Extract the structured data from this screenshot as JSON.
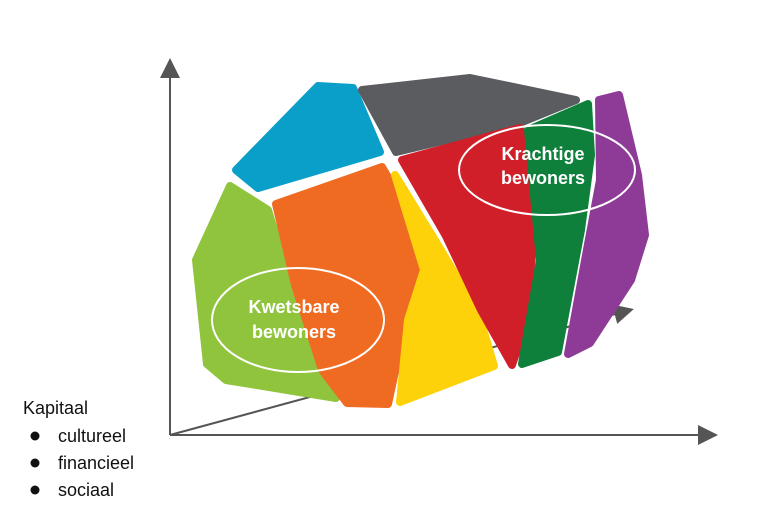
{
  "labels": [
    {
      "lines": [
        "Krachtige",
        "bewoners"
      ]
    },
    {
      "lines": [
        "Kwetsbare",
        "bewoners"
      ]
    }
  ],
  "legend": {
    "title": "Kapitaal",
    "items": [
      "cultureel",
      "financieel",
      "sociaal"
    ]
  }
}
